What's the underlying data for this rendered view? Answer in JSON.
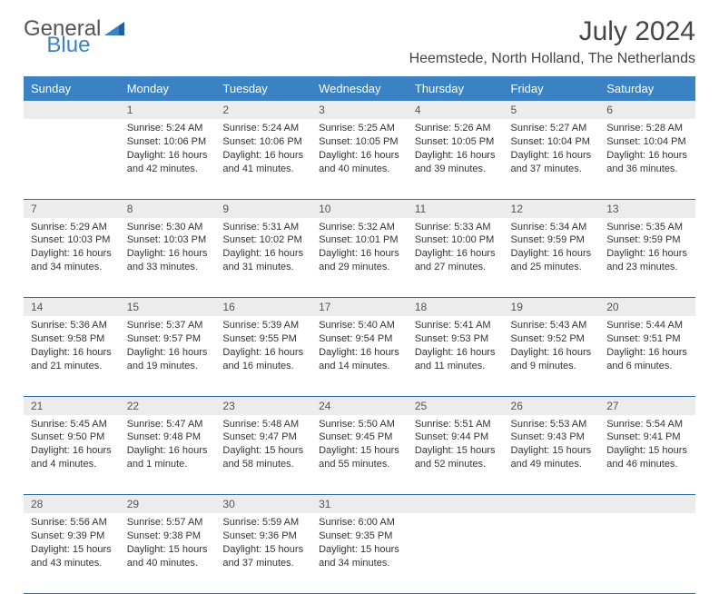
{
  "brand": {
    "part1": "General",
    "part2": "Blue"
  },
  "title": "July 2024",
  "location": "Heemstede, North Holland, The Netherlands",
  "colors": {
    "header_bg": "#3b82c4",
    "header_text": "#ffffff",
    "daynum_bg": "#ececec",
    "rule": "#2f6aa8",
    "body_text": "#333333",
    "title_text": "#454545"
  },
  "weekdays": [
    "Sunday",
    "Monday",
    "Tuesday",
    "Wednesday",
    "Thursday",
    "Friday",
    "Saturday"
  ],
  "weeks": [
    {
      "nums": [
        "",
        "1",
        "2",
        "3",
        "4",
        "5",
        "6"
      ],
      "cells": [
        null,
        {
          "sunrise": "5:24 AM",
          "sunset": "10:06 PM",
          "daylight": "16 hours and 42 minutes."
        },
        {
          "sunrise": "5:24 AM",
          "sunset": "10:06 PM",
          "daylight": "16 hours and 41 minutes."
        },
        {
          "sunrise": "5:25 AM",
          "sunset": "10:05 PM",
          "daylight": "16 hours and 40 minutes."
        },
        {
          "sunrise": "5:26 AM",
          "sunset": "10:05 PM",
          "daylight": "16 hours and 39 minutes."
        },
        {
          "sunrise": "5:27 AM",
          "sunset": "10:04 PM",
          "daylight": "16 hours and 37 minutes."
        },
        {
          "sunrise": "5:28 AM",
          "sunset": "10:04 PM",
          "daylight": "16 hours and 36 minutes."
        }
      ]
    },
    {
      "nums": [
        "7",
        "8",
        "9",
        "10",
        "11",
        "12",
        "13"
      ],
      "cells": [
        {
          "sunrise": "5:29 AM",
          "sunset": "10:03 PM",
          "daylight": "16 hours and 34 minutes."
        },
        {
          "sunrise": "5:30 AM",
          "sunset": "10:03 PM",
          "daylight": "16 hours and 33 minutes."
        },
        {
          "sunrise": "5:31 AM",
          "sunset": "10:02 PM",
          "daylight": "16 hours and 31 minutes."
        },
        {
          "sunrise": "5:32 AM",
          "sunset": "10:01 PM",
          "daylight": "16 hours and 29 minutes."
        },
        {
          "sunrise": "5:33 AM",
          "sunset": "10:00 PM",
          "daylight": "16 hours and 27 minutes."
        },
        {
          "sunrise": "5:34 AM",
          "sunset": "9:59 PM",
          "daylight": "16 hours and 25 minutes."
        },
        {
          "sunrise": "5:35 AM",
          "sunset": "9:59 PM",
          "daylight": "16 hours and 23 minutes."
        }
      ]
    },
    {
      "nums": [
        "14",
        "15",
        "16",
        "17",
        "18",
        "19",
        "20"
      ],
      "cells": [
        {
          "sunrise": "5:36 AM",
          "sunset": "9:58 PM",
          "daylight": "16 hours and 21 minutes."
        },
        {
          "sunrise": "5:37 AM",
          "sunset": "9:57 PM",
          "daylight": "16 hours and 19 minutes."
        },
        {
          "sunrise": "5:39 AM",
          "sunset": "9:55 PM",
          "daylight": "16 hours and 16 minutes."
        },
        {
          "sunrise": "5:40 AM",
          "sunset": "9:54 PM",
          "daylight": "16 hours and 14 minutes."
        },
        {
          "sunrise": "5:41 AM",
          "sunset": "9:53 PM",
          "daylight": "16 hours and 11 minutes."
        },
        {
          "sunrise": "5:43 AM",
          "sunset": "9:52 PM",
          "daylight": "16 hours and 9 minutes."
        },
        {
          "sunrise": "5:44 AM",
          "sunset": "9:51 PM",
          "daylight": "16 hours and 6 minutes."
        }
      ]
    },
    {
      "nums": [
        "21",
        "22",
        "23",
        "24",
        "25",
        "26",
        "27"
      ],
      "cells": [
        {
          "sunrise": "5:45 AM",
          "sunset": "9:50 PM",
          "daylight": "16 hours and 4 minutes."
        },
        {
          "sunrise": "5:47 AM",
          "sunset": "9:48 PM",
          "daylight": "16 hours and 1 minute."
        },
        {
          "sunrise": "5:48 AM",
          "sunset": "9:47 PM",
          "daylight": "15 hours and 58 minutes."
        },
        {
          "sunrise": "5:50 AM",
          "sunset": "9:45 PM",
          "daylight": "15 hours and 55 minutes."
        },
        {
          "sunrise": "5:51 AM",
          "sunset": "9:44 PM",
          "daylight": "15 hours and 52 minutes."
        },
        {
          "sunrise": "5:53 AM",
          "sunset": "9:43 PM",
          "daylight": "15 hours and 49 minutes."
        },
        {
          "sunrise": "5:54 AM",
          "sunset": "9:41 PM",
          "daylight": "15 hours and 46 minutes."
        }
      ]
    },
    {
      "nums": [
        "28",
        "29",
        "30",
        "31",
        "",
        "",
        ""
      ],
      "cells": [
        {
          "sunrise": "5:56 AM",
          "sunset": "9:39 PM",
          "daylight": "15 hours and 43 minutes."
        },
        {
          "sunrise": "5:57 AM",
          "sunset": "9:38 PM",
          "daylight": "15 hours and 40 minutes."
        },
        {
          "sunrise": "5:59 AM",
          "sunset": "9:36 PM",
          "daylight": "15 hours and 37 minutes."
        },
        {
          "sunrise": "6:00 AM",
          "sunset": "9:35 PM",
          "daylight": "15 hours and 34 minutes."
        },
        null,
        null,
        null
      ]
    }
  ],
  "labels": {
    "sunrise": "Sunrise: ",
    "sunset": "Sunset: ",
    "daylight": "Daylight: "
  }
}
